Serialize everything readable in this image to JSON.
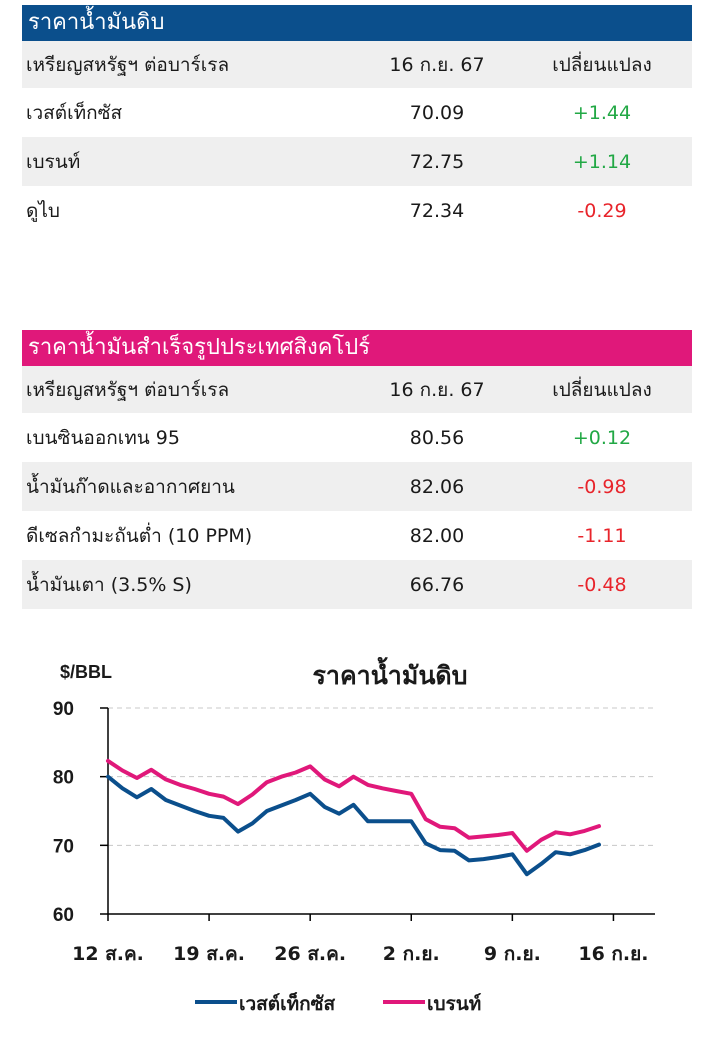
{
  "crude": {
    "title": "ราคาน้ำมันดิบ",
    "title_color": "#0b4f8c",
    "header": {
      "unit": "เหรียญสหรัฐฯ ต่อบาร์เรล",
      "date": "16 ก.ย. 67",
      "change": "เปลี่ยนแปลง"
    },
    "rows": [
      {
        "name": "เวสต์เท็กซัส",
        "price": "70.09",
        "change": "+1.44"
      },
      {
        "name": "เบรนท์",
        "price": "72.75",
        "change": "+1.14"
      },
      {
        "name": "ดูไบ",
        "price": "72.34",
        "change": "-0.29"
      }
    ]
  },
  "refined": {
    "title": "ราคาน้ำมันสำเร็จรูปประเทศสิงคโปร์",
    "title_color": "#e0187a",
    "header": {
      "unit": "เหรียญสหรัฐฯ ต่อบาร์เรล",
      "date": "16 ก.ย. 67",
      "change": "เปลี่ยนแปลง"
    },
    "rows": [
      {
        "name": "เบนซินออกเทน 95",
        "price": "80.56",
        "change": "+0.12"
      },
      {
        "name": "น้ำมันก๊าดและอากาศยาน",
        "price": "82.06",
        "change": "-0.98"
      },
      {
        "name": "ดีเซลกำมะถันต่ำ (10 PPM)",
        "price": "82.00",
        "change": "-1.11"
      },
      {
        "name": "น้ำมันเตา (3.5% S)",
        "price": "66.76",
        "change": "-0.48"
      }
    ]
  },
  "colors": {
    "positive": "#22a845",
    "negative": "#e8242b"
  },
  "chart_data": {
    "type": "line",
    "title": "ราคาน้ำมันดิบ",
    "ylabel": "$/BBL",
    "ylim": [
      60,
      90
    ],
    "yticks": [
      60,
      70,
      80,
      90
    ],
    "xtick_labels": [
      "12 ส.ค.",
      "19 ส.ค.",
      "26 ส.ค.",
      "2 ก.ย.",
      "9 ก.ย.",
      "16 ก.ย."
    ],
    "grid": true,
    "legend_position": "bottom",
    "series": [
      {
        "name": "เวสต์เท็กซัส",
        "color": "#0b4f8c",
        "values": [
          80.0,
          78.3,
          77.0,
          78.2,
          76.6,
          75.8,
          75.0,
          74.3,
          74.0,
          72.0,
          73.2,
          75.0,
          75.8,
          76.6,
          77.5,
          75.6,
          74.6,
          75.9,
          73.5,
          73.5,
          73.5,
          73.5,
          70.3,
          69.3,
          69.2,
          67.8,
          68.0,
          68.3,
          68.7,
          65.8,
          67.3,
          69.0,
          68.7,
          69.3,
          70.1
        ]
      },
      {
        "name": "เบรนท์",
        "color": "#e0187a",
        "values": [
          82.3,
          80.9,
          79.8,
          81.0,
          79.6,
          78.8,
          78.2,
          77.5,
          77.1,
          76.0,
          77.4,
          79.2,
          80.0,
          80.6,
          81.5,
          79.6,
          78.6,
          80.0,
          78.8,
          78.3,
          77.9,
          77.5,
          73.8,
          72.7,
          72.5,
          71.1,
          71.3,
          71.5,
          71.8,
          69.2,
          70.8,
          71.9,
          71.6,
          72.1,
          72.8
        ]
      }
    ]
  }
}
